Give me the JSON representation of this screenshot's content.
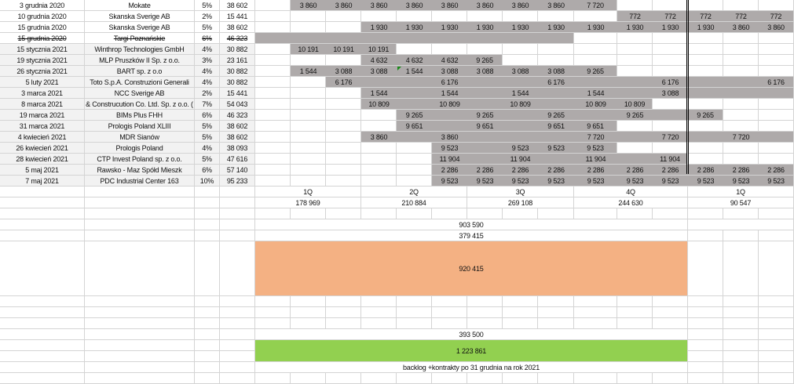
{
  "colors": {
    "shaded": "#aeaaaa",
    "left_bg": "#f2f2f2",
    "orange": "#f4b183",
    "green": "#92d050",
    "grid": "#d4d4d4"
  },
  "rows": [
    {
      "date": "3 grudnia 2020",
      "company": "Mokate",
      "pct": "5%",
      "value": "38 602",
      "shaded": [
        1,
        9
      ],
      "cells": {
        "1": "3 860",
        "2": "3 860",
        "3": "3 860",
        "4": "3 860",
        "5": "3 860",
        "6": "3 860",
        "7": "3 860",
        "8": "3 860",
        "9": "7 720"
      }
    },
    {
      "date": "10 grudnia 2020",
      "company": "Skanska Sverige AB",
      "pct": "2%",
      "value": "15 441",
      "shaded": [
        10,
        14
      ],
      "cells": {
        "10": "772",
        "11": "772",
        "12": "772",
        "13": "772",
        "14": "772"
      }
    },
    {
      "date": "15 grudnia 2020",
      "company": "Skanska Sverige AB",
      "pct": "5%",
      "value": "38 602",
      "shaded": [
        3,
        14
      ],
      "cells": {
        "3": "1 930",
        "4": "1 930",
        "5": "1 930",
        "6": "1 930",
        "7": "1 930",
        "8": "1 930",
        "9": "1 930",
        "10": "1 930",
        "11": "1 930",
        "12": "1 930",
        "13": "3 860",
        "14": "3 860"
      }
    },
    {
      "date": "15 grudnia 2020",
      "company": "Targi Poznańskie",
      "pct": "6%",
      "value": "46 323",
      "struck": true,
      "shaded": [
        0,
        8
      ],
      "cells": {}
    },
    {
      "date": "15 stycznia 2021",
      "company": "Winthrop Technologies GmbH",
      "pct": "4%",
      "value": "30 882",
      "shaded": [
        1,
        3
      ],
      "cells": {
        "1": "10 191",
        "2": "10 191",
        "3": "10 191"
      }
    },
    {
      "date": "19 stycznia 2021",
      "company": "MLP Pruszków II Sp. z o.o.",
      "pct": "3%",
      "value": "23 161",
      "shaded": [
        3,
        6
      ],
      "cells": {
        "3": "4 632",
        "4": "4 632",
        "5": "4 632",
        "6": "9 265"
      }
    },
    {
      "date": "26 stycznia 2021",
      "company": "BART sp. z o.o",
      "pct": "4%",
      "value": "30 882",
      "shaded": [
        1,
        9
      ],
      "cells": {
        "1": "1 544",
        "2": "3 088",
        "3": "3 088",
        "4": "1 544",
        "5": "3 088",
        "6": "3 088",
        "7": "3 088",
        "8": "3 088",
        "9": "9 265"
      }
    },
    {
      "date": "5 luty 2021",
      "company": "Toto S.p.A. Construzioni Generali",
      "pct": "4%",
      "value": "30 882",
      "shaded": [
        2,
        14
      ],
      "cells": {
        "2": "6 176",
        "5": "6 176",
        "8": "6 176",
        "11": "6 176",
        "14": "6 176"
      }
    },
    {
      "date": "3 marca 2021",
      "company": "NCC Sverige AB",
      "pct": "2%",
      "value": "15 441",
      "shaded": [
        3,
        14
      ],
      "cells": {
        "3": "1 544",
        "5": "1 544",
        "7": "1 544",
        "9": "1 544",
        "11": "3 088"
      }
    },
    {
      "date": "8 marca 2021",
      "company": "& Construcution Co. Ltd. Sp. z o.o. (",
      "pct": "7%",
      "value": "54 043",
      "shaded": [
        3,
        10
      ],
      "cells": {
        "3": "10 809",
        "5": "10 809",
        "7": "10 809",
        "9": "10 809",
        "10": "10 809"
      }
    },
    {
      "date": "19 marca 2021",
      "company": "BIMs Plus FHH",
      "pct": "6%",
      "value": "46 323",
      "shaded": [
        4,
        12
      ],
      "cells": {
        "4": "9 265",
        "6": "9 265",
        "8": "9 265",
        "10": "9 265",
        "12": "9 265"
      }
    },
    {
      "date": "31 marca 2021",
      "company": "Prologis Poland XLIII",
      "pct": "5%",
      "value": "38 602",
      "shaded": [
        4,
        9
      ],
      "cells": {
        "4": "9 651",
        "6": "9 651",
        "8": "9 651",
        "9": "9 651"
      }
    },
    {
      "date": "4 kwiecień 2021",
      "company": "MDR Sianów",
      "pct": "5%",
      "value": "38 602",
      "shaded": [
        3,
        14
      ],
      "cells": {
        "3": "3 860",
        "5": "3 860",
        "9": "7 720",
        "11": "7 720",
        "13": "7 720"
      }
    },
    {
      "date": "26 kwiecień 2021",
      "company": "Prologis Poland",
      "pct": "4%",
      "value": "38 093",
      "shaded": [
        5,
        9
      ],
      "cells": {
        "5": "9 523",
        "7": "9 523",
        "8": "9 523",
        "9": "9 523"
      }
    },
    {
      "date": "28 kwiecień 2021",
      "company": "CTP Invest Poland sp. z o.o.",
      "pct": "5%",
      "value": "47 616",
      "shaded": [
        5,
        11
      ],
      "cells": {
        "5": "11 904",
        "7": "11 904",
        "9": "11 904",
        "11": "11 904"
      }
    },
    {
      "date": "5 maj 2021",
      "company": "Rawsko - Maz Spółd Mieszk",
      "pct": "6%",
      "value": "57 140",
      "shaded": [
        5,
        14
      ],
      "cells": {
        "5": "2 286",
        "6": "2 286",
        "7": "2 286",
        "8": "2 286",
        "9": "2 286",
        "10": "2 286",
        "11": "2 286",
        "12": "2 286",
        "13": "2 286",
        "14": "2 286"
      }
    },
    {
      "date": "7 maj 2021",
      "company": "PDC Industrial Center 163",
      "pct": "10%",
      "value": "95 233",
      "shaded": [
        5,
        14
      ],
      "cells": {
        "5": "9 523",
        "6": "9 523",
        "7": "9 523",
        "8": "9 523",
        "9": "9 523",
        "10": "9 523",
        "11": "9 523",
        "12": "9 523",
        "13": "9 523",
        "14": "9 523"
      }
    }
  ],
  "quarters": [
    {
      "label": "1Q",
      "total": "178 969",
      "cols": [
        0,
        2
      ]
    },
    {
      "label": "2Q",
      "total": "210 884",
      "cols": [
        3,
        5
      ]
    },
    {
      "label": "3Q",
      "total": "269 108",
      "cols": [
        6,
        8
      ]
    },
    {
      "label": "4Q",
      "total": "244 630",
      "cols": [
        9,
        11
      ]
    },
    {
      "label": "1Q",
      "total": "90 547",
      "cols": [
        12,
        14
      ]
    }
  ],
  "summary": {
    "sum_total": "903 590",
    "second_total": "379 415",
    "orange_total": "920 415",
    "extra": "393 500",
    "green_total": "1 223 861",
    "caption": "backlog +kontrakty po 31 grudnia na rok 2021"
  }
}
